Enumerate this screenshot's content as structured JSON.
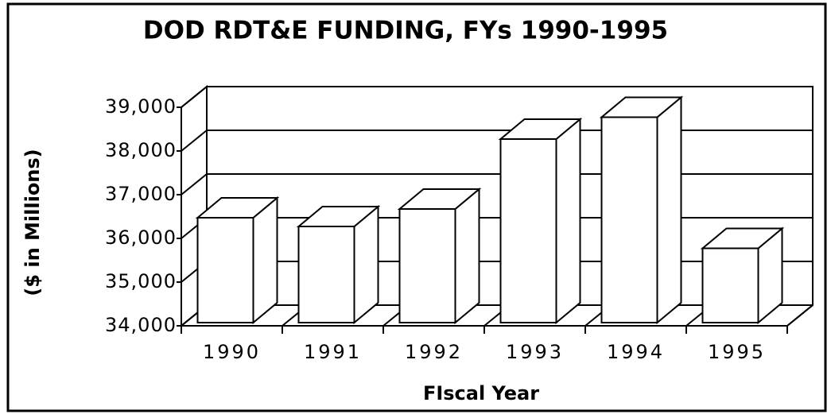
{
  "chart_data": {
    "type": "bar3d",
    "title": "DOD  RDT&E  FUNDING,  FYs  1990-1995",
    "x_label": "FIscal  Year",
    "y_label": "($  in  Millions)",
    "categories": [
      "1990",
      "1991",
      "1992",
      "1993",
      "1994",
      "1995"
    ],
    "values": [
      36400,
      36200,
      36600,
      38200,
      38700,
      35700
    ],
    "color": "#ffffff",
    "ylim": [
      34000,
      39000
    ],
    "yticks": [
      {
        "value": 34000,
        "label": "34,000"
      },
      {
        "value": 35000,
        "label": "35,000"
      },
      {
        "value": 36000,
        "label": "36,000"
      },
      {
        "value": 37000,
        "label": "37,000"
      },
      {
        "value": 38000,
        "label": "38,000"
      },
      {
        "value": 39000,
        "label": "39,000"
      }
    ],
    "grid": true
  }
}
